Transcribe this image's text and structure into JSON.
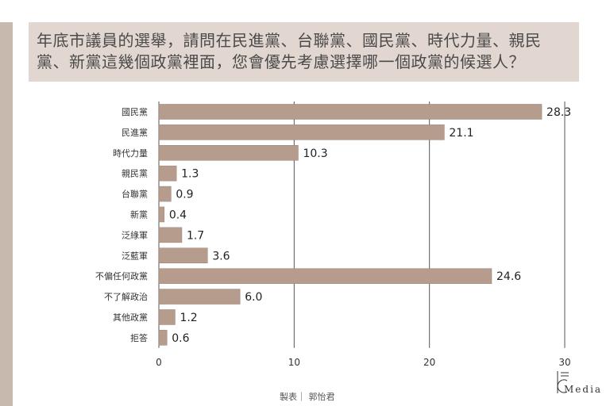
{
  "question": "年底市議員的選舉，請問在民進黨、台聯黨、國民黨、時代力量、親民黨、新黨這幾個政黨裡面，您會優先考慮選擇哪一個政黨的候選人？",
  "credit": "製表｜ 郭怡君",
  "logo": {
    "text": "Media"
  },
  "colors": {
    "bar": "#b59c8c",
    "bar_stroke": "#9a8173",
    "grid": "#555555",
    "header_bg": "#e2d7d0",
    "left_bar": "#c8b9ae"
  },
  "chart_data": {
    "type": "bar",
    "orientation": "horizontal",
    "categories": [
      "國民黨",
      "民進黨",
      "時代力量",
      "親民黨",
      "台聯黨",
      "新黨",
      "泛綠軍",
      "泛藍軍",
      "不偏任何政黨",
      "不了解政治",
      "其他政黨",
      "拒答"
    ],
    "values": [
      28.3,
      21.1,
      10.3,
      1.3,
      0.9,
      0.4,
      1.7,
      3.6,
      24.6,
      6.0,
      1.2,
      0.6
    ],
    "value_labels": [
      "28.3",
      "21.1",
      "10.3",
      "1.3",
      "0.9",
      "0.4",
      "1.7",
      "3.6",
      "24.6",
      "6.0",
      "1.2",
      "0.6"
    ],
    "xlim": [
      0,
      30
    ],
    "xticks": [
      "0",
      "10",
      "20",
      "30"
    ],
    "xtick_values": [
      0,
      10,
      20,
      30
    ],
    "grid": "vertical"
  }
}
